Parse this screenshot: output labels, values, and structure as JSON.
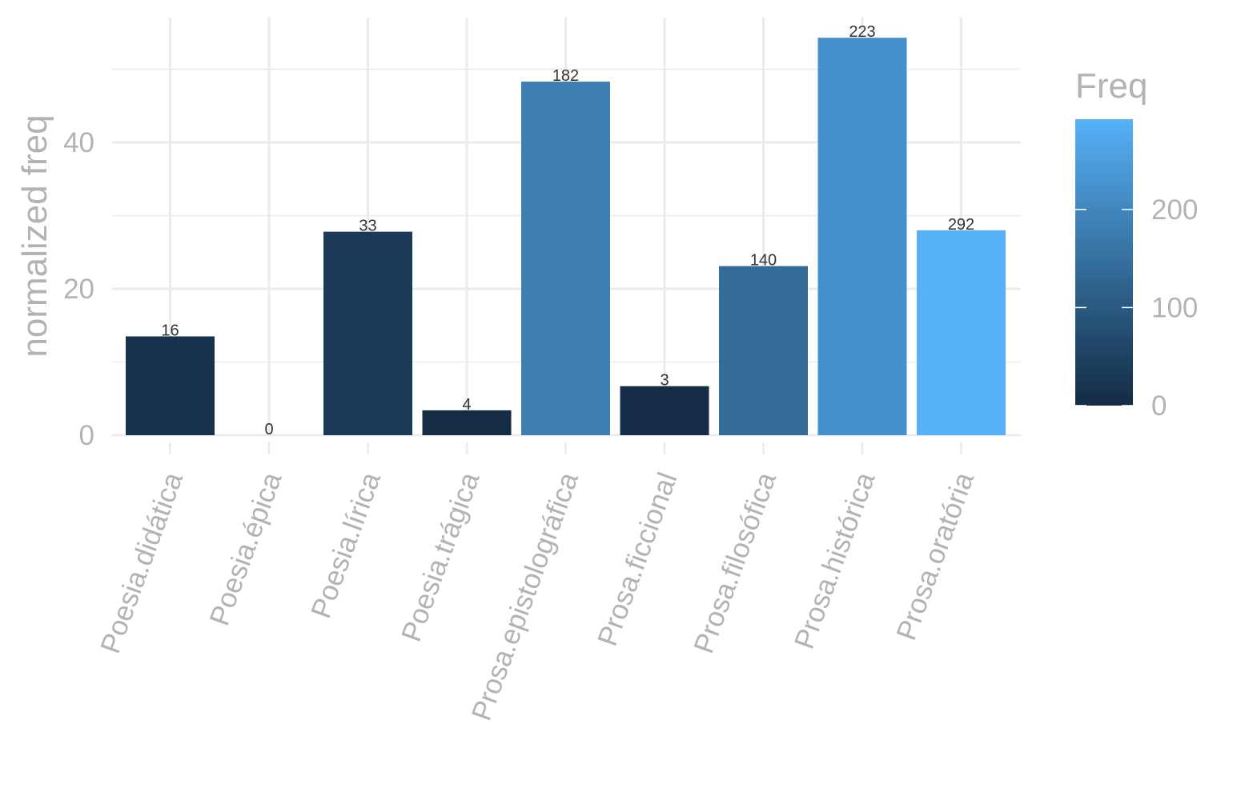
{
  "chart_data": {
    "type": "bar",
    "xlabel": "",
    "ylabel": "normalized freq",
    "ylim": [
      0,
      57
    ],
    "yticks": [
      0,
      20,
      40
    ],
    "grid": true,
    "categories": [
      "Poesia.didática",
      "Poesia.épica",
      "Poesia.lírica",
      "Poesia.trágica",
      "Prosa.epistolográfica",
      "Prosa.ficcional",
      "Prosa.filosófica",
      "Prosa.histórica",
      "Prosa.oratória"
    ],
    "values": [
      13.5,
      0,
      27.8,
      3.4,
      48.3,
      6.7,
      23.1,
      54.3,
      28.0
    ],
    "freq": [
      16,
      0,
      33,
      4,
      182,
      3,
      140,
      223,
      292
    ],
    "data_labels": [
      "16",
      "0",
      "33",
      "4",
      "182",
      "3",
      "140",
      "223",
      "292"
    ],
    "legend": {
      "title": "Freq",
      "position": "right",
      "type": "colorbar",
      "range": [
        0,
        292
      ],
      "ticks": [
        0,
        100,
        200
      ],
      "tick_labels": [
        "0",
        "100",
        "200"
      ],
      "low_color": "#132B43",
      "high_color": "#56B1F7"
    }
  }
}
